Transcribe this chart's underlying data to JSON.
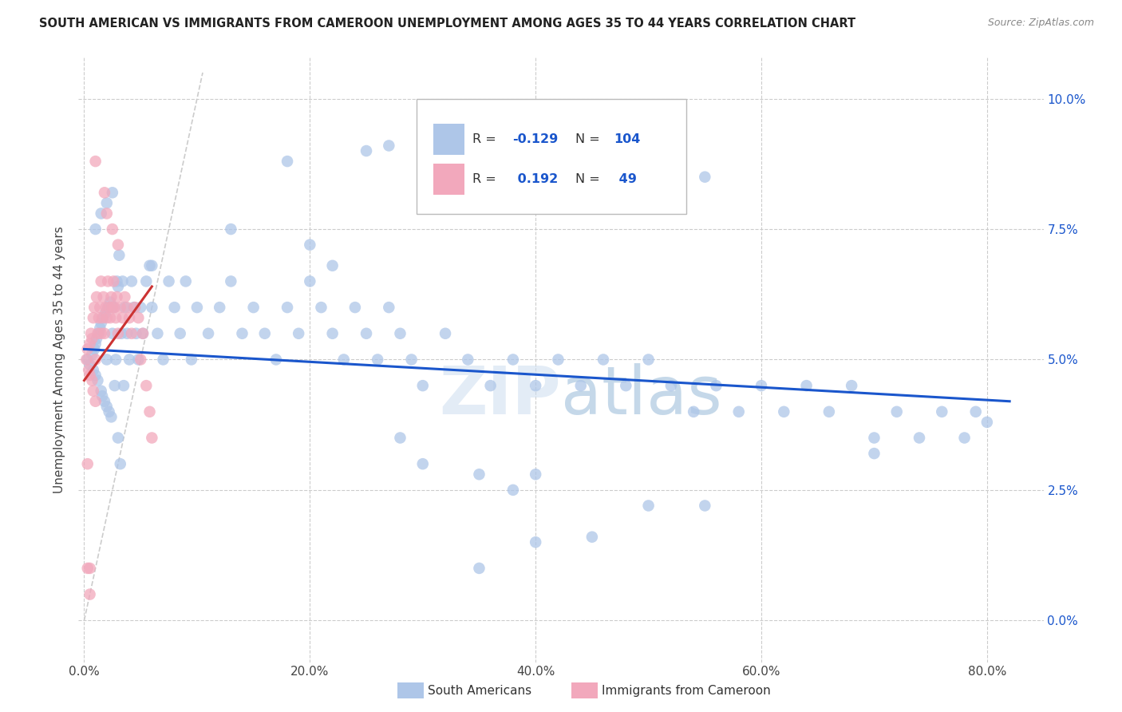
{
  "title": "SOUTH AMERICAN VS IMMIGRANTS FROM CAMEROON UNEMPLOYMENT AMONG AGES 35 TO 44 YEARS CORRELATION CHART",
  "source": "Source: ZipAtlas.com",
  "xlabel_ticks": [
    "0.0%",
    "20.0%",
    "40.0%",
    "60.0%",
    "80.0%"
  ],
  "ylabel_ticks": [
    "0.0%",
    "2.5%",
    "5.0%",
    "7.5%",
    "10.0%"
  ],
  "xlim": [
    -0.005,
    0.85
  ],
  "ylim": [
    -0.008,
    0.108
  ],
  "ylabel": "Unemployment Among Ages 35 to 44 years",
  "legend_label1": "South Americans",
  "legend_label2": "Immigrants from Cameroon",
  "r1": "-0.129",
  "n1": "104",
  "r2": "0.192",
  "n2": "49",
  "color_blue": "#aec6e8",
  "color_pink": "#f2a8bc",
  "line_blue": "#1a56cc",
  "line_pink": "#cc3333",
  "diagonal_color": "#cccccc",
  "background": "#ffffff",
  "sa_x": [
    0.003,
    0.005,
    0.007,
    0.008,
    0.009,
    0.01,
    0.01,
    0.011,
    0.012,
    0.013,
    0.014,
    0.015,
    0.015,
    0.016,
    0.017,
    0.018,
    0.019,
    0.02,
    0.02,
    0.021,
    0.022,
    0.023,
    0.024,
    0.025,
    0.026,
    0.027,
    0.028,
    0.029,
    0.03,
    0.031,
    0.032,
    0.033,
    0.034,
    0.035,
    0.036,
    0.038,
    0.04,
    0.042,
    0.044,
    0.046,
    0.048,
    0.05,
    0.052,
    0.055,
    0.058,
    0.06,
    0.065,
    0.07,
    0.075,
    0.08,
    0.085,
    0.09,
    0.095,
    0.1,
    0.11,
    0.12,
    0.13,
    0.14,
    0.15,
    0.16,
    0.17,
    0.18,
    0.19,
    0.2,
    0.21,
    0.22,
    0.23,
    0.24,
    0.25,
    0.26,
    0.27,
    0.28,
    0.29,
    0.3,
    0.32,
    0.34,
    0.36,
    0.38,
    0.4,
    0.42,
    0.44,
    0.46,
    0.48,
    0.5,
    0.52,
    0.54,
    0.56,
    0.58,
    0.6,
    0.62,
    0.64,
    0.66,
    0.68,
    0.7,
    0.72,
    0.74,
    0.76,
    0.78,
    0.79,
    0.8,
    0.25,
    0.18,
    0.45,
    0.34
  ],
  "sa_y": [
    0.05,
    0.049,
    0.051,
    0.048,
    0.052,
    0.053,
    0.047,
    0.054,
    0.046,
    0.055,
    0.056,
    0.044,
    0.057,
    0.043,
    0.058,
    0.042,
    0.059,
    0.05,
    0.041,
    0.06,
    0.04,
    0.061,
    0.039,
    0.055,
    0.06,
    0.045,
    0.05,
    0.065,
    0.035,
    0.07,
    0.03,
    0.055,
    0.065,
    0.045,
    0.06,
    0.055,
    0.05,
    0.065,
    0.06,
    0.055,
    0.05,
    0.06,
    0.055,
    0.065,
    0.068,
    0.06,
    0.055,
    0.05,
    0.065,
    0.06,
    0.055,
    0.065,
    0.05,
    0.06,
    0.055,
    0.06,
    0.065,
    0.055,
    0.06,
    0.055,
    0.05,
    0.06,
    0.055,
    0.065,
    0.06,
    0.055,
    0.05,
    0.06,
    0.055,
    0.05,
    0.06,
    0.055,
    0.05,
    0.045,
    0.055,
    0.05,
    0.045,
    0.05,
    0.045,
    0.05,
    0.045,
    0.05,
    0.045,
    0.05,
    0.045,
    0.04,
    0.045,
    0.04,
    0.045,
    0.04,
    0.045,
    0.04,
    0.045,
    0.035,
    0.04,
    0.035,
    0.04,
    0.035,
    0.04,
    0.038,
    0.09,
    0.088,
    0.091,
    0.092
  ],
  "cam_x": [
    0.002,
    0.003,
    0.004,
    0.005,
    0.005,
    0.006,
    0.007,
    0.007,
    0.008,
    0.008,
    0.009,
    0.01,
    0.01,
    0.011,
    0.012,
    0.013,
    0.014,
    0.015,
    0.015,
    0.016,
    0.017,
    0.018,
    0.019,
    0.02,
    0.021,
    0.022,
    0.023,
    0.024,
    0.025,
    0.026,
    0.027,
    0.028,
    0.029,
    0.03,
    0.032,
    0.034,
    0.036,
    0.038,
    0.04,
    0.042,
    0.045,
    0.048,
    0.05,
    0.052,
    0.055,
    0.058,
    0.06,
    0.003,
    0.005
  ],
  "cam_y": [
    0.05,
    0.052,
    0.048,
    0.053,
    0.047,
    0.055,
    0.054,
    0.046,
    0.058,
    0.044,
    0.06,
    0.05,
    0.042,
    0.062,
    0.055,
    0.058,
    0.06,
    0.055,
    0.065,
    0.058,
    0.062,
    0.055,
    0.06,
    0.058,
    0.065,
    0.06,
    0.058,
    0.062,
    0.06,
    0.065,
    0.06,
    0.058,
    0.062,
    0.055,
    0.06,
    0.058,
    0.062,
    0.06,
    0.058,
    0.055,
    0.06,
    0.058,
    0.05,
    0.055,
    0.045,
    0.04,
    0.035,
    0.03,
    0.01
  ]
}
